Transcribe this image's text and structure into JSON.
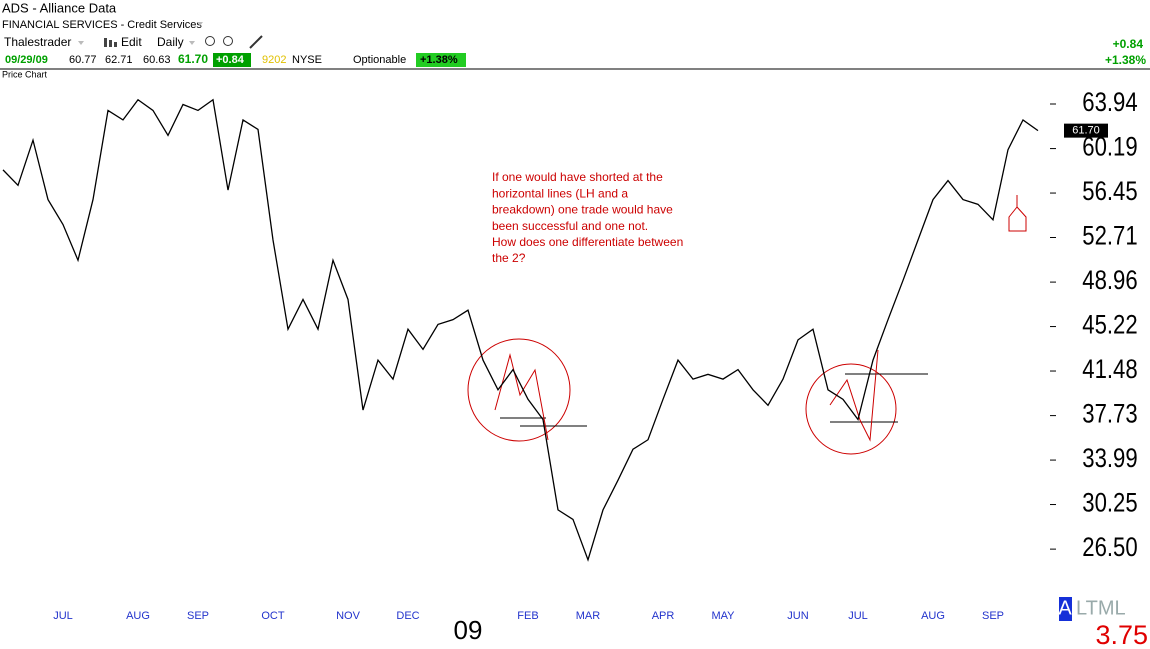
{
  "header": {
    "symbol": "ADS - Alliance Data",
    "sector": "FINANCIAL SERVICES - Credit Services",
    "user": "Thalestrader",
    "edit": "Edit",
    "period": "Daily",
    "date": "09/29/09",
    "open": "60.77",
    "high": "62.71",
    "low": "60.63",
    "close": "61.70",
    "change": "+0.84",
    "volume": "9202",
    "exchange": "NYSE",
    "optionable": "Optionable",
    "change_pct": "+1.38%"
  },
  "summary": {
    "change": "+0.84",
    "change_pct": "+1.38%"
  },
  "indicator": {
    "letter": "A",
    "name": "LTML",
    "value": "3.75"
  },
  "chart_data": {
    "type": "line",
    "panel_label": "Price Chart",
    "annotation": [
      "If one would have shorted at the",
      "horizontal lines  (LH and a",
      "breakdown) one trade would have",
      "been successful and one not.",
      "How does one differentiate between",
      "the 2?"
    ],
    "categories": [
      null,
      null,
      null,
      null,
      "JUL",
      null,
      null,
      null,
      null,
      "AUG",
      null,
      null,
      null,
      "SEP",
      null,
      null,
      null,
      null,
      "OCT",
      null,
      null,
      null,
      null,
      "NOV",
      null,
      null,
      null,
      "DEC",
      null,
      null,
      null,
      "09",
      null,
      null,
      null,
      "FEB",
      null,
      null,
      null,
      "MAR",
      null,
      null,
      null,
      null,
      "APR",
      null,
      null,
      null,
      "MAY",
      null,
      null,
      null,
      null,
      "JUN",
      null,
      null,
      null,
      "JUL",
      null,
      null,
      null,
      null,
      "AUG",
      null,
      null,
      null,
      "SEP",
      null,
      null,
      null
    ],
    "series": [
      {
        "name": "ADS",
        "color": "#000000",
        "values": [
          58.4,
          57.1,
          60.9,
          55.9,
          53.8,
          50.8,
          55.9,
          63.4,
          62.6,
          64.3,
          63.4,
          61.3,
          63.9,
          63.4,
          64.3,
          56.7,
          62.6,
          61.8,
          52.5,
          45.0,
          47.5,
          45.0,
          50.8,
          47.5,
          38.2,
          42.4,
          40.8,
          45.0,
          43.3,
          45.4,
          45.8,
          46.6,
          42.4,
          39.9,
          41.6,
          39.1,
          37.4,
          29.8,
          29.0,
          25.6,
          29.8,
          32.3,
          34.9,
          35.7,
          39.1,
          42.4,
          40.8,
          41.2,
          40.8,
          41.6,
          39.9,
          38.6,
          40.8,
          44.1,
          45.0,
          39.9,
          39.1,
          37.4,
          42.4,
          45.8,
          49.1,
          52.5,
          55.9,
          57.5,
          55.9,
          55.5,
          54.2,
          60.1,
          62.6,
          61.7
        ],
        "value_labels": [
          null,
          null,
          null,
          null,
          null,
          null,
          null,
          null,
          null,
          null,
          null,
          null,
          null,
          null,
          null,
          null,
          null,
          null,
          null,
          null,
          null,
          null,
          null,
          null,
          null,
          null,
          null,
          null,
          null,
          null,
          null,
          null,
          null,
          null,
          null,
          null,
          null,
          null,
          null,
          null,
          null,
          null,
          null,
          null,
          null,
          null,
          null,
          null,
          null,
          null,
          null,
          null,
          null,
          null,
          null,
          null,
          null,
          null,
          null,
          null,
          null,
          null,
          null,
          null,
          null,
          null,
          null,
          null,
          null,
          "61.70"
        ]
      }
    ],
    "ylim": [
      21.8,
      66.8
    ],
    "yticks": [
      63.94,
      60.19,
      56.45,
      52.71,
      48.96,
      45.22,
      41.48,
      37.73,
      33.99,
      30.25,
      {
        "value": 26.5,
        "label": "26.50"
      }
    ]
  }
}
